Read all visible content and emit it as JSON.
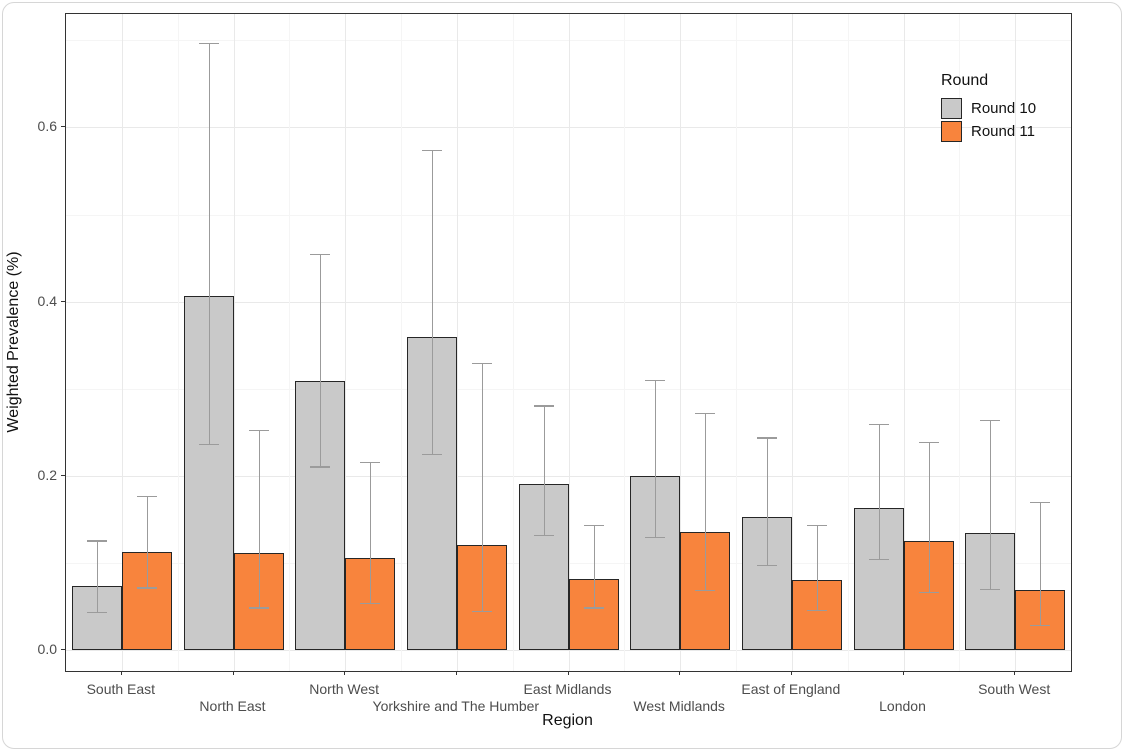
{
  "chart_data": {
    "type": "bar",
    "title": "",
    "xlabel": "Region",
    "ylabel": "Weighted Prevalence (%)",
    "ylim": [
      0,
      0.73
    ],
    "yticks": [
      0.0,
      0.2,
      0.4,
      0.6
    ],
    "ytick_labels": [
      "0.0",
      "0.2",
      "0.4",
      "0.6"
    ],
    "minor_gridlines": [
      0.1,
      0.3,
      0.5,
      0.7
    ],
    "grid": "on",
    "error_bars": true,
    "legend": {
      "title": "Round",
      "position": "top-right-inside",
      "entries": [
        {
          "label": "Round 10",
          "color": "#c9c9c9"
        },
        {
          "label": "Round 11",
          "color": "#f8843d"
        }
      ]
    },
    "categories": [
      "South East",
      "North East",
      "North West",
      "Yorkshire and The Humber",
      "East Midlands",
      "West Midlands",
      "East of England",
      "London",
      "South West"
    ],
    "series": [
      {
        "name": "Round 10",
        "color": "#c9c9c9",
        "values": [
          0.074,
          0.407,
          0.309,
          0.359,
          0.191,
          0.2,
          0.153,
          0.163,
          0.134
        ],
        "ci_low": [
          0.044,
          0.237,
          0.211,
          0.225,
          0.132,
          0.13,
          0.098,
          0.105,
          0.07
        ],
        "ci_high": [
          0.126,
          0.697,
          0.455,
          0.574,
          0.281,
          0.31,
          0.244,
          0.26,
          0.264
        ]
      },
      {
        "name": "Round 11",
        "color": "#f8843d",
        "values": [
          0.112,
          0.111,
          0.106,
          0.12,
          0.082,
          0.135,
          0.08,
          0.125,
          0.069
        ],
        "ci_low": [
          0.072,
          0.049,
          0.054,
          0.045,
          0.049,
          0.069,
          0.046,
          0.067,
          0.029
        ],
        "ci_high": [
          0.177,
          0.253,
          0.216,
          0.33,
          0.144,
          0.272,
          0.144,
          0.239,
          0.17
        ]
      }
    ]
  },
  "colors": {
    "bar_border": "#262626",
    "error_bar": "#9b9b9b",
    "grid_major": "#e9e9e9",
    "grid_minor": "#f5f5f5",
    "axis_text": "#4d4d4d",
    "panel_border": "#333333"
  }
}
